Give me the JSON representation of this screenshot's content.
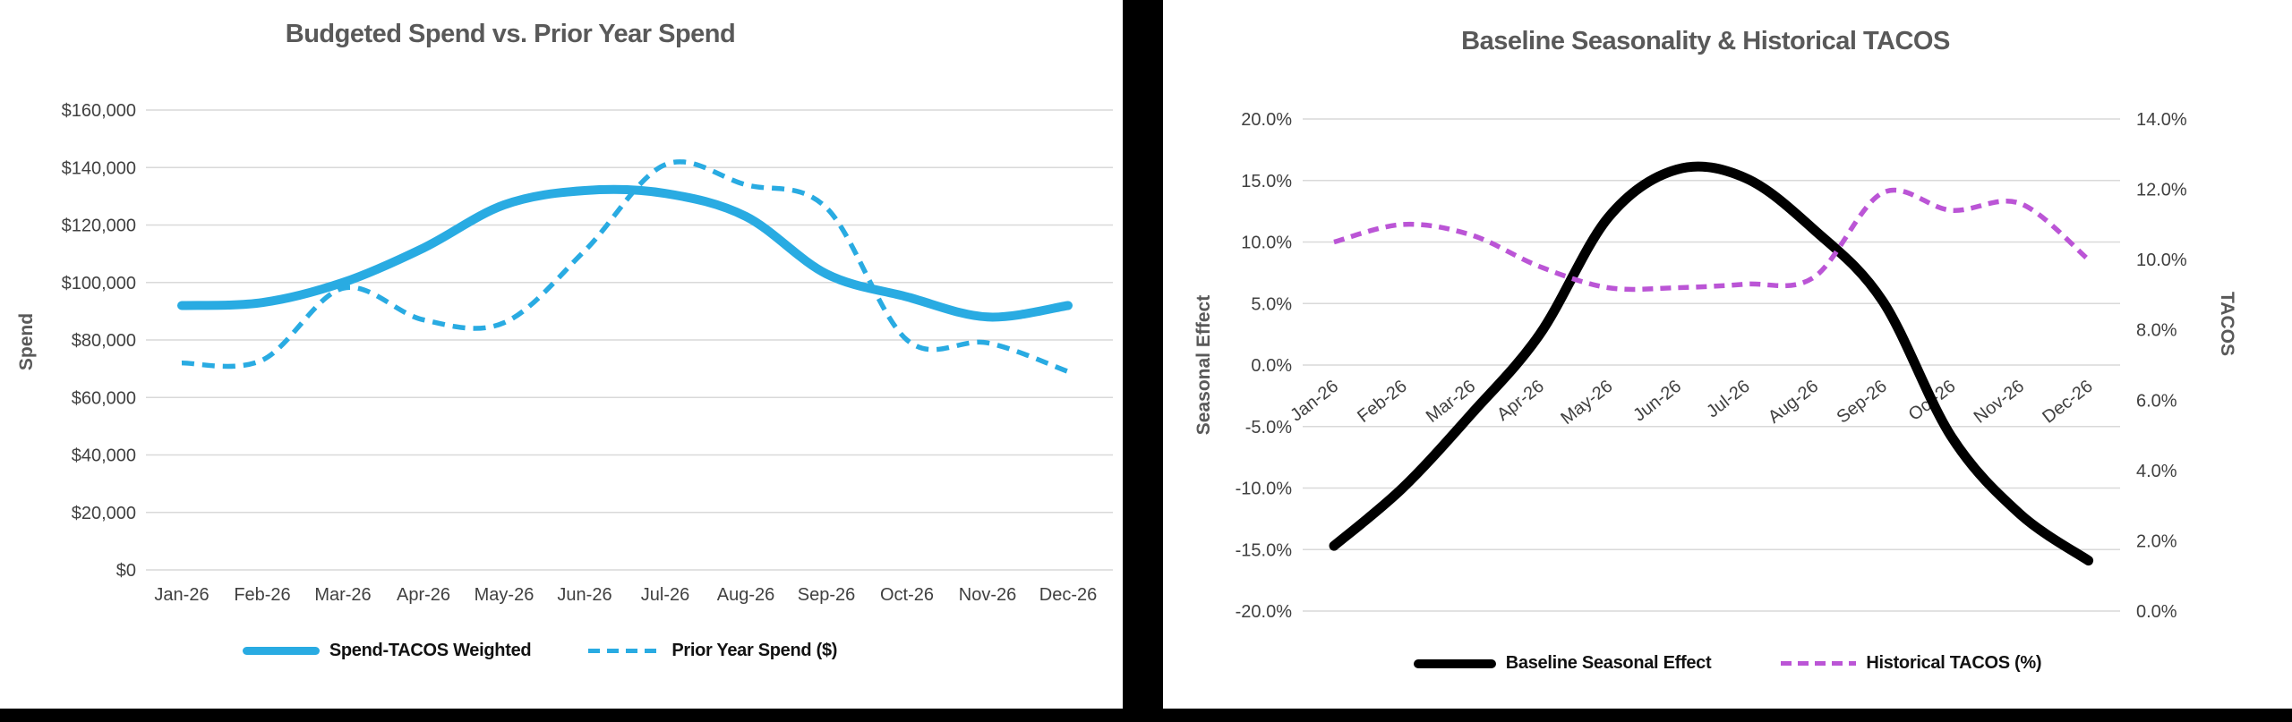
{
  "page": {
    "background_color": "#000000",
    "panel_color": "#ffffff",
    "gridline_color": "#d9d9d9",
    "tick_text_color": "#404040",
    "title_text_color": "#595959",
    "accent_blue": "#29abe2",
    "accent_purple": "#bb55d6",
    "accent_black": "#000000"
  },
  "left_chart": {
    "title": "Budgeted Spend vs. Prior Year Spend",
    "y_axis_title": "Spend",
    "y_tick_labels": [
      "$160,000",
      "$140,000",
      "$120,000",
      "$100,000",
      "$80,000",
      "$60,000",
      "$40,000",
      "$20,000",
      "$0"
    ],
    "x_tick_labels": [
      "Jan-26",
      "Feb-26",
      "Mar-26",
      "Apr-26",
      "May-26",
      "Jun-26",
      "Jul-26",
      "Aug-26",
      "Sep-26",
      "Oct-26",
      "Nov-26",
      "Dec-26"
    ],
    "legend": {
      "item1_label": "Spend-TACOS Weighted",
      "item2_label": "Prior Year Spend ($)"
    }
  },
  "right_chart": {
    "title": "Baseline Seasonality & Historical TACOS",
    "left_y_axis_title": "Seasonal Effect",
    "right_y_axis_title": "TACOS",
    "left_y_tick_labels": [
      "20.0%",
      "15.0%",
      "10.0%",
      "5.0%",
      "0.0%",
      "-5.0%",
      "-10.0%",
      "-15.0%",
      "-20.0%"
    ],
    "right_y_tick_labels": [
      "14.0%",
      "12.0%",
      "10.0%",
      "8.0%",
      "6.0%",
      "4.0%",
      "2.0%",
      "0.0%"
    ],
    "x_tick_labels": [
      "Jan-26",
      "Feb-26",
      "Mar-26",
      "Apr-26",
      "May-26",
      "Jun-26",
      "Jul-26",
      "Aug-26",
      "Sep-26",
      "Oct-26",
      "Nov-26",
      "Dec-26"
    ],
    "legend": {
      "item1_label": "Baseline Seasonal Effect",
      "item2_label": "Historical TACOS (%)"
    }
  },
  "chart_data": [
    {
      "type": "line",
      "title": "Budgeted Spend vs. Prior Year Spend",
      "categories": [
        "Jan-26",
        "Feb-26",
        "Mar-26",
        "Apr-26",
        "May-26",
        "Jun-26",
        "Jul-26",
        "Aug-26",
        "Sep-26",
        "Oct-26",
        "Nov-26",
        "Dec-26"
      ],
      "series": [
        {
          "name": "Spend-TACOS Weighted",
          "style": "solid",
          "color": "#29abe2",
          "values": [
            92000,
            93000,
            100000,
            112000,
            127000,
            132000,
            131000,
            123000,
            103000,
            95000,
            88000,
            92000
          ]
        },
        {
          "name": "Prior Year Spend ($)",
          "style": "dashed",
          "color": "#29abe2",
          "values": [
            72000,
            73000,
            98000,
            87000,
            86000,
            111000,
            141000,
            134000,
            126000,
            80000,
            79000,
            69000
          ]
        }
      ],
      "xlabel": "",
      "ylabel": "Spend",
      "ylim": [
        0,
        160000
      ],
      "ytick_step": 20000,
      "grid": true,
      "legend_position": "bottom"
    },
    {
      "type": "line",
      "title": "Baseline Seasonality & Historical TACOS",
      "categories": [
        "Jan-26",
        "Feb-26",
        "Mar-26",
        "Apr-26",
        "May-26",
        "Jun-26",
        "Jul-26",
        "Aug-26",
        "Sep-26",
        "Oct-26",
        "Nov-26",
        "Dec-26"
      ],
      "series": [
        {
          "name": "Baseline Seasonal Effect",
          "axis": "left",
          "style": "solid",
          "color": "#000000",
          "values": [
            -14.7,
            -10.0,
            -4.0,
            2.5,
            12.0,
            15.9,
            15.2,
            11.0,
            5.2,
            -5.8,
            -12.1,
            -15.9
          ]
        },
        {
          "name": "Historical TACOS (%)",
          "axis": "right",
          "style": "dashed",
          "color": "#bb55d6",
          "values": [
            10.5,
            11.0,
            10.7,
            9.8,
            9.2,
            9.2,
            9.3,
            9.5,
            11.9,
            11.4,
            11.6,
            10.0
          ]
        }
      ],
      "xlabel": "",
      "ylabel_left": "Seasonal Effect",
      "ylabel_right": "TACOS",
      "ylim_left": [
        -20,
        20
      ],
      "ytick_step_left": 5,
      "ylim_right": [
        0,
        14
      ],
      "ytick_step_right": 2,
      "grid": true,
      "legend_position": "bottom",
      "x_labels_rotation_deg": -38
    }
  ]
}
